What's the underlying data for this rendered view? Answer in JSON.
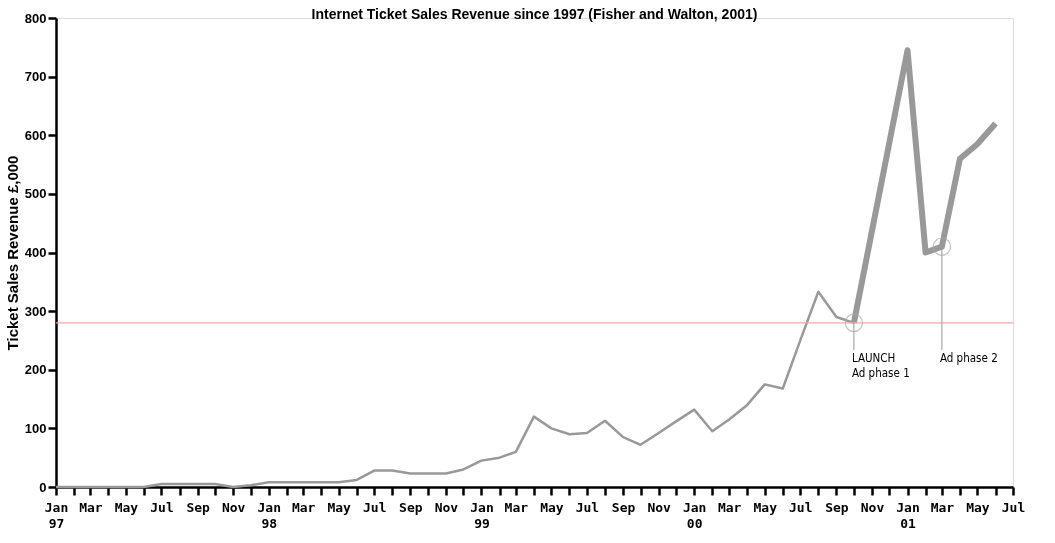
{
  "chart_data": {
    "type": "line",
    "title": "Internet Ticket Sales Revenue since 1997 (Fisher and Walton, 2001)",
    "ylabel": "Ticket Sales Revenue £,000",
    "series": [
      {
        "color": "#999999",
        "line_style": "solid",
        "x": [
          "1997-01",
          "1997-02",
          "1997-03",
          "1997-04",
          "1997-05",
          "1997-06",
          "1997-07",
          "1997-08",
          "1997-09",
          "1997-10",
          "1997-11",
          "1997-12",
          "1998-01",
          "1998-02",
          "1998-03",
          "1998-04",
          "1998-05",
          "1998-06",
          "1998-07",
          "1998-08",
          "1998-09",
          "1998-10",
          "1998-11",
          "1998-12",
          "1999-01",
          "1999-02",
          "1999-03",
          "1999-04",
          "1999-05",
          "1999-06",
          "1999-07",
          "1999-08",
          "1999-09",
          "1999-10",
          "1999-11",
          "1999-12",
          "2000-01",
          "2000-02",
          "2000-03",
          "2000-04",
          "2000-05",
          "2000-06",
          "2000-07",
          "2000-08",
          "2000-09",
          "2000-10"
        ],
        "values": [
          0,
          0,
          0,
          0,
          0,
          0,
          5,
          5,
          5,
          5,
          0,
          3,
          8,
          8,
          8,
          8,
          8,
          12,
          28,
          28,
          23,
          23,
          23,
          30,
          45,
          50,
          60,
          120,
          100,
          90,
          92,
          113,
          85,
          72,
          92,
          112,
          132,
          95,
          115,
          140,
          175,
          168,
          250,
          333,
          290,
          280
        ]
      },
      {
        "color": "#999999",
        "line_style": "solid",
        "x": [
          "2000-10",
          "2001-01",
          "2001-02",
          "2001-03",
          "2001-04",
          "2001-05",
          "2001-06"
        ],
        "values": [
          280,
          745,
          400,
          410,
          560,
          585,
          620
        ]
      }
    ],
    "ylim": [
      0,
      800
    ],
    "yticks": [
      0,
      100,
      200,
      300,
      400,
      500,
      600,
      700,
      800
    ],
    "xlim": [
      "1997-01",
      "2001-07"
    ],
    "xticks": [
      {
        "value": "1997-01",
        "label": "Jan\n97"
      },
      {
        "value": "1997-02",
        "label": null
      },
      {
        "value": "1997-03",
        "label": "Mar"
      },
      {
        "value": "1997-04",
        "label": null
      },
      {
        "value": "1997-05",
        "label": "May"
      },
      {
        "value": "1997-06",
        "label": null
      },
      {
        "value": "1997-07",
        "label": "Jul"
      },
      {
        "value": "1997-08",
        "label": null
      },
      {
        "value": "1997-09",
        "label": "Sep"
      },
      {
        "value": "1997-10",
        "label": null
      },
      {
        "value": "1997-11",
        "label": "Nov"
      },
      {
        "value": "1997-12",
        "label": null
      },
      {
        "value": "1998-01",
        "label": "Jan\n98"
      },
      {
        "value": "1998-02",
        "label": null
      },
      {
        "value": "1998-03",
        "label": "Mar"
      },
      {
        "value": "1998-04",
        "label": null
      },
      {
        "value": "1998-05",
        "label": "May"
      },
      {
        "value": "1998-06",
        "label": null
      },
      {
        "value": "1998-07",
        "label": "Jul"
      },
      {
        "value": "1998-08",
        "label": null
      },
      {
        "value": "1998-09",
        "label": "Sep"
      },
      {
        "value": "1998-10",
        "label": null
      },
      {
        "value": "1998-11",
        "label": "Nov"
      },
      {
        "value": "1998-12",
        "label": null
      },
      {
        "value": "1999-01",
        "label": "Jan\n99"
      },
      {
        "value": "1999-02",
        "label": null
      },
      {
        "value": "1999-03",
        "label": "Mar"
      },
      {
        "value": "1999-04",
        "label": null
      },
      {
        "value": "1999-05",
        "label": "May"
      },
      {
        "value": "1999-06",
        "label": null
      },
      {
        "value": "1999-07",
        "label": "Jul"
      },
      {
        "value": "1999-08",
        "label": null
      },
      {
        "value": "1999-09",
        "label": "Sep"
      },
      {
        "value": "1999-10",
        "label": null
      },
      {
        "value": "1999-11",
        "label": "Nov"
      },
      {
        "value": "1999-12",
        "label": null
      },
      {
        "value": "2000-01",
        "label": "Jan\n00"
      },
      {
        "value": "2000-02",
        "label": null
      },
      {
        "value": "2000-03",
        "label": "Mar"
      },
      {
        "value": "2000-04",
        "label": null
      },
      {
        "value": "2000-05",
        "label": "May"
      },
      {
        "value": "2000-06",
        "label": null
      },
      {
        "value": "2000-07",
        "label": "Jul"
      },
      {
        "value": "2000-08",
        "label": null
      },
      {
        "value": "2000-09",
        "label": "Sep"
      },
      {
        "value": "2000-10",
        "label": null
      },
      {
        "value": "2000-11",
        "label": "Nov"
      },
      {
        "value": "2000-12",
        "label": null
      },
      {
        "value": "2001-01",
        "label": "Jan\n01"
      },
      {
        "value": "2001-02",
        "label": null
      },
      {
        "value": "2001-03",
        "label": "Mar"
      },
      {
        "value": "2001-04",
        "label": null
      },
      {
        "value": "2001-05",
        "label": "May"
      },
      {
        "value": "2001-06",
        "label": null
      },
      {
        "value": "2001-07",
        "label": "Jul"
      }
    ],
    "ref_lines": [
      {
        "axis": "y",
        "value": 280,
        "color": "#f4a6a6",
        "line_style": "solid"
      }
    ],
    "annotations": [
      {
        "text": "LAUNCH\nAd phase 1",
        "x": "2000-10",
        "y": 280
      },
      {
        "text": "Ad phase 2",
        "x": "2001-03",
        "y": 410
      }
    ],
    "grid": false,
    "marker": "none"
  }
}
